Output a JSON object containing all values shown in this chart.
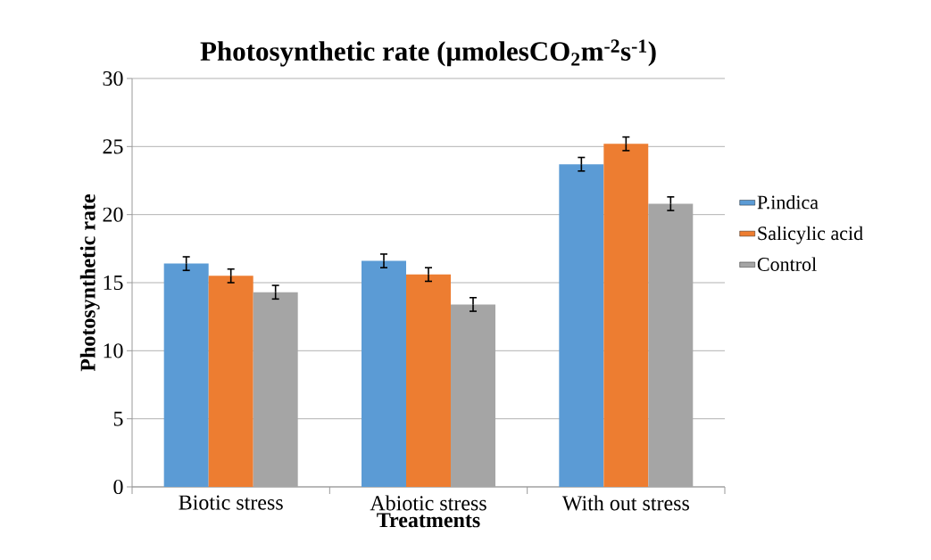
{
  "chart_data": {
    "type": "bar",
    "title": "Photosynthetic rate (μmolesCO$_{2}$m$^{-2}$s$^{-1}$)",
    "xlabel": "Treatments",
    "ylabel": "Photosynthetic rate",
    "categories": [
      "Biotic stress",
      "Abiotic stress",
      "With out stress"
    ],
    "series": [
      {
        "name": "P.indica",
        "color": "#5b9bd5",
        "values": [
          16.4,
          16.6,
          23.7
        ],
        "errors": [
          0.5,
          0.5,
          0.5
        ]
      },
      {
        "name": "Salicylic acid",
        "color": "#ed7d31",
        "values": [
          15.5,
          15.6,
          25.2
        ],
        "errors": [
          0.5,
          0.5,
          0.5
        ]
      },
      {
        "name": "Control",
        "color": "#a5a5a5",
        "values": [
          14.3,
          13.4,
          20.8
        ],
        "errors": [
          0.5,
          0.5,
          0.5
        ]
      }
    ],
    "ylim": [
      0,
      30
    ],
    "yticks": [
      0,
      5,
      10,
      15,
      20,
      25,
      30
    ],
    "grid": "y",
    "legend": "right"
  }
}
